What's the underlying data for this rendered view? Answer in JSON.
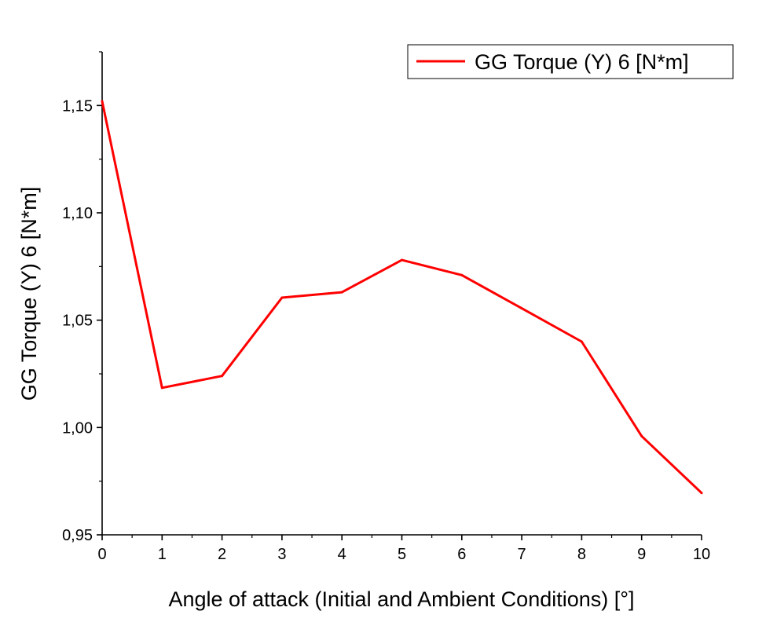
{
  "chart_data": {
    "type": "line",
    "xlabel": "Angle of attack (Initial and Ambient Conditions) [°]",
    "ylabel": "GG Torque (Y) 6 [N*m]",
    "xlim": [
      0,
      10
    ],
    "ylim": [
      0.95,
      1.175
    ],
    "x_ticks": [
      0,
      1,
      2,
      3,
      4,
      5,
      6,
      7,
      8,
      9,
      10
    ],
    "x_tick_labels": [
      "0",
      "1",
      "2",
      "3",
      "4",
      "5",
      "6",
      "7",
      "8",
      "9",
      "10"
    ],
    "y_ticks": [
      0.95,
      1.0,
      1.05,
      1.1,
      1.15
    ],
    "y_tick_labels": [
      "0,95",
      "1,00",
      "1,05",
      "1,10",
      "1,15"
    ],
    "grid": false,
    "legend_position": "top-right",
    "series": [
      {
        "name": "GG Torque (Y) 6 [N*m]",
        "color": "#ff0000",
        "x": [
          0,
          1,
          2,
          3,
          4,
          5,
          6,
          7,
          8,
          9,
          10
        ],
        "y": [
          1.152,
          1.0185,
          1.024,
          1.0605,
          1.063,
          1.078,
          1.071,
          1.0555,
          1.04,
          0.996,
          0.9695
        ]
      }
    ]
  }
}
